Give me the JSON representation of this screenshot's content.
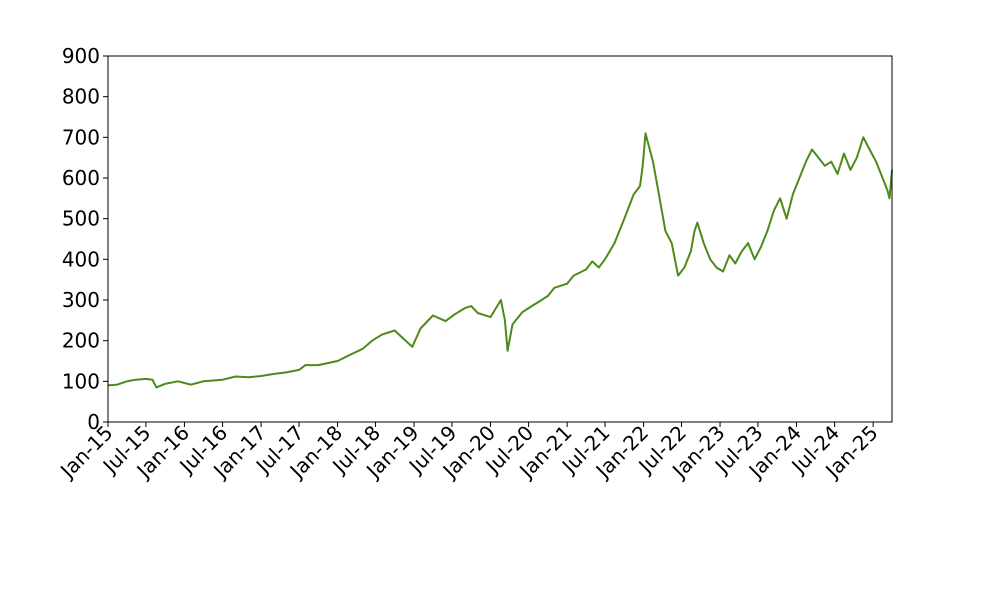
{
  "chart_data": {
    "type": "line",
    "title": "",
    "xlabel": "",
    "ylabel": "",
    "x_range": [
      "2015-01-01",
      "2025-04-01"
    ],
    "ylim": [
      0,
      900
    ],
    "y_ticks": [
      0,
      100,
      200,
      300,
      400,
      500,
      600,
      700,
      800,
      900
    ],
    "x_ticks": [
      {
        "date": "2015-01-01",
        "label": "Jan-15"
      },
      {
        "date": "2015-07-01",
        "label": "Jul-15"
      },
      {
        "date": "2016-01-01",
        "label": "Jan-16"
      },
      {
        "date": "2016-07-01",
        "label": "Jul-16"
      },
      {
        "date": "2017-01-01",
        "label": "Jan-17"
      },
      {
        "date": "2017-07-01",
        "label": "Jul-17"
      },
      {
        "date": "2018-01-01",
        "label": "Jan-18"
      },
      {
        "date": "2018-07-01",
        "label": "Jul-18"
      },
      {
        "date": "2019-01-01",
        "label": "Jan-19"
      },
      {
        "date": "2019-07-01",
        "label": "Jul-19"
      },
      {
        "date": "2020-01-01",
        "label": "Jan-20"
      },
      {
        "date": "2020-07-01",
        "label": "Jul-20"
      },
      {
        "date": "2021-01-01",
        "label": "Jan-21"
      },
      {
        "date": "2021-07-01",
        "label": "Jul-21"
      },
      {
        "date": "2022-01-01",
        "label": "Jan-22"
      },
      {
        "date": "2022-07-01",
        "label": "Jul-22"
      },
      {
        "date": "2023-01-01",
        "label": "Jan-23"
      },
      {
        "date": "2023-07-01",
        "label": "Jul-23"
      },
      {
        "date": "2024-01-01",
        "label": "Jan-24"
      },
      {
        "date": "2024-07-01",
        "label": "Jul-24"
      },
      {
        "date": "2025-01-01",
        "label": "Jan-25"
      }
    ],
    "grid": false,
    "legend": false,
    "series": [
      {
        "color": "#4d8a1a",
        "points": [
          [
            "2015-01-01",
            90
          ],
          [
            "2015-02-15",
            92
          ],
          [
            "2015-04-01",
            100
          ],
          [
            "2015-05-15",
            104
          ],
          [
            "2015-07-01",
            106
          ],
          [
            "2015-08-01",
            104
          ],
          [
            "2015-08-20",
            85
          ],
          [
            "2015-10-01",
            94
          ],
          [
            "2015-12-01",
            100
          ],
          [
            "2016-01-01",
            96
          ],
          [
            "2016-02-01",
            92
          ],
          [
            "2016-04-01",
            100
          ],
          [
            "2016-07-01",
            104
          ],
          [
            "2016-09-01",
            112
          ],
          [
            "2016-11-01",
            110
          ],
          [
            "2017-01-01",
            113
          ],
          [
            "2017-03-01",
            118
          ],
          [
            "2017-05-01",
            122
          ],
          [
            "2017-07-01",
            128
          ],
          [
            "2017-08-01",
            140
          ],
          [
            "2017-10-01",
            140
          ],
          [
            "2018-01-01",
            150
          ],
          [
            "2018-03-01",
            165
          ],
          [
            "2018-05-01",
            180
          ],
          [
            "2018-06-15",
            200
          ],
          [
            "2018-08-01",
            215
          ],
          [
            "2018-10-01",
            225
          ],
          [
            "2018-11-01",
            210
          ],
          [
            "2018-12-24",
            185
          ],
          [
            "2019-02-01",
            230
          ],
          [
            "2019-04-01",
            262
          ],
          [
            "2019-06-01",
            248
          ],
          [
            "2019-07-15",
            265
          ],
          [
            "2019-09-01",
            280
          ],
          [
            "2019-10-01",
            285
          ],
          [
            "2019-11-01",
            268
          ],
          [
            "2020-01-01",
            258
          ],
          [
            "2020-02-20",
            300
          ],
          [
            "2020-03-10",
            250
          ],
          [
            "2020-03-23",
            175
          ],
          [
            "2020-04-15",
            240
          ],
          [
            "2020-06-01",
            270
          ],
          [
            "2020-07-01",
            280
          ],
          [
            "2020-09-01",
            300
          ],
          [
            "2020-10-01",
            310
          ],
          [
            "2020-11-01",
            330
          ],
          [
            "2021-01-01",
            340
          ],
          [
            "2021-02-01",
            360
          ],
          [
            "2021-04-01",
            375
          ],
          [
            "2021-05-01",
            395
          ],
          [
            "2021-06-01",
            380
          ],
          [
            "2021-07-01",
            400
          ],
          [
            "2021-08-15",
            440
          ],
          [
            "2021-10-01",
            500
          ],
          [
            "2021-11-15",
            560
          ],
          [
            "2021-12-15",
            580
          ],
          [
            "2021-12-28",
            630
          ],
          [
            "2022-01-10",
            710
          ],
          [
            "2022-01-20",
            690
          ],
          [
            "2022-02-15",
            640
          ],
          [
            "2022-03-15",
            560
          ],
          [
            "2022-04-15",
            470
          ],
          [
            "2022-05-15",
            440
          ],
          [
            "2022-06-15",
            360
          ],
          [
            "2022-07-15",
            380
          ],
          [
            "2022-08-15",
            420
          ],
          [
            "2022-09-01",
            470
          ],
          [
            "2022-09-15",
            490
          ],
          [
            "2022-10-15",
            440
          ],
          [
            "2022-11-15",
            400
          ],
          [
            "2022-12-15",
            380
          ],
          [
            "2023-01-15",
            370
          ],
          [
            "2023-02-15",
            410
          ],
          [
            "2023-03-15",
            390
          ],
          [
            "2023-04-15",
            420
          ],
          [
            "2023-05-15",
            440
          ],
          [
            "2023-06-15",
            400
          ],
          [
            "2023-07-15",
            430
          ],
          [
            "2023-08-15",
            470
          ],
          [
            "2023-09-15",
            520
          ],
          [
            "2023-10-15",
            550
          ],
          [
            "2023-11-15",
            500
          ],
          [
            "2023-12-15",
            560
          ],
          [
            "2024-01-15",
            600
          ],
          [
            "2024-02-15",
            640
          ],
          [
            "2024-03-15",
            670
          ],
          [
            "2024-04-15",
            650
          ],
          [
            "2024-05-15",
            630
          ],
          [
            "2024-06-15",
            640
          ],
          [
            "2024-07-15",
            610
          ],
          [
            "2024-08-15",
            660
          ],
          [
            "2024-09-15",
            620
          ],
          [
            "2024-10-15",
            650
          ],
          [
            "2024-11-15",
            700
          ],
          [
            "2024-12-15",
            670
          ],
          [
            "2025-01-15",
            640
          ],
          [
            "2025-02-15",
            600
          ],
          [
            "2025-03-10",
            570
          ],
          [
            "2025-03-20",
            550
          ],
          [
            "2025-04-01",
            620
          ]
        ]
      }
    ]
  }
}
